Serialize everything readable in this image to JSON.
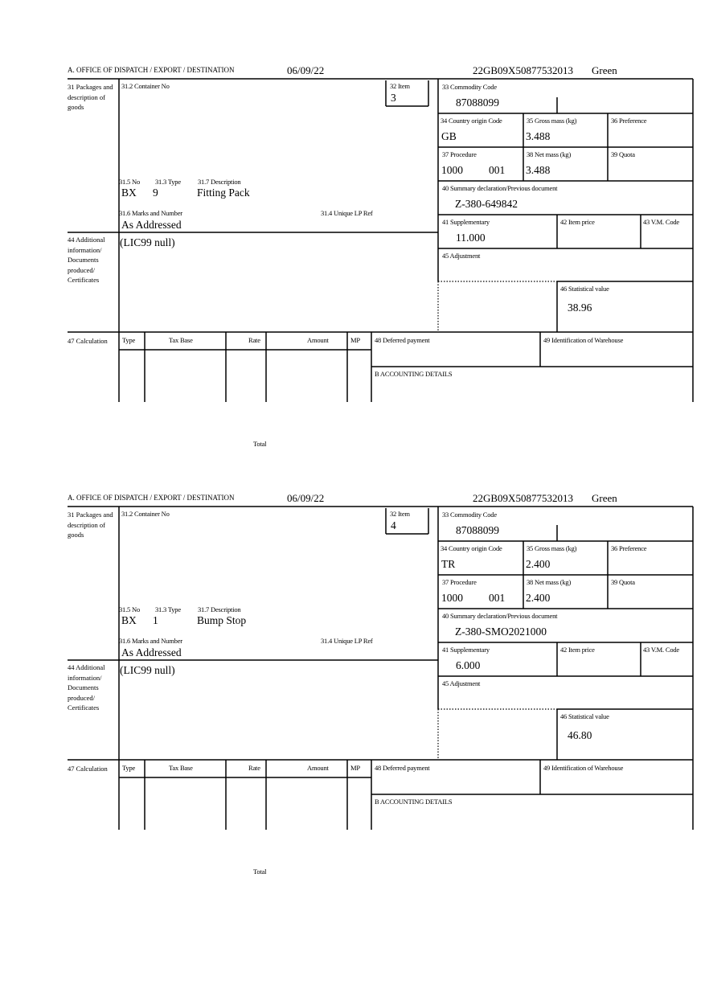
{
  "labels": {
    "office": "A. OFFICE OF DISPATCH / EXPORT / DESTINATION",
    "box31": "31 Packages and description of goods",
    "box31_2": "31.2 Container No",
    "box32": "32 Item",
    "box31_5": "31.5 No",
    "box31_3": "31.3 Type",
    "box31_7": "31.7 Description",
    "box31_6": "31.6 Marks and Number",
    "box31_4": "31.4 Unique LP Ref",
    "box33": "33 Commodity Code",
    "box34": "34 Country origin Code",
    "box35": "35 Gross mass (kg)",
    "box36": "36 Preference",
    "box37": "37 Procedure",
    "box38": "38 Net mass (kg)",
    "box39": "39 Quota",
    "box40": "40 Summary declaration/Previous document",
    "box41": "41 Supplementary",
    "box42": "42 Item price",
    "box43": "43 V.M. Code",
    "box44": "44 Additional information/ Documents produced/ Certificates",
    "box45": "45 Adjustment",
    "box46": "46 Statistical value",
    "box47": "47 Calculation",
    "col_type": "Type",
    "col_taxbase": "Tax Base",
    "col_rate": "Rate",
    "col_amount": "Amount",
    "col_mp": "MP",
    "total": "Total",
    "box48": "48 Deferred payment",
    "box49": "49 Identification of Warehouse",
    "boxB": "B ACCOUNTING DETAILS"
  },
  "forms": [
    {
      "date": "06/09/22",
      "reference": "22GB09X50877532013",
      "status": "Green",
      "item": "3",
      "package_kind": "BX",
      "package_count": "9",
      "description": "Fitting Pack",
      "marks": "As Addressed",
      "commodity_code": "87088099",
      "country_origin": "GB",
      "gross_mass": "3.488",
      "procedure": "1000",
      "procedure_add": "001",
      "net_mass": "3.488",
      "previous_document": "Z-380-649842",
      "supplementary": "11.000",
      "statistical_value": "38.96",
      "additional_info": "(LIC99 null)"
    },
    {
      "date": "06/09/22",
      "reference": "22GB09X50877532013",
      "status": "Green",
      "item": "4",
      "package_kind": "BX",
      "package_count": "1",
      "description": "Bump Stop",
      "marks": "As Addressed",
      "commodity_code": "87088099",
      "country_origin": "TR",
      "gross_mass": "2.400",
      "procedure": "1000",
      "procedure_add": "001",
      "net_mass": "2.400",
      "previous_document": "Z-380-SMO2021000",
      "supplementary": "6.000",
      "statistical_value": "46.80",
      "additional_info": "(LIC99 null)"
    }
  ]
}
